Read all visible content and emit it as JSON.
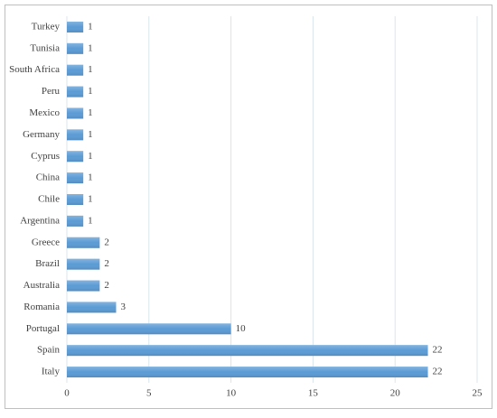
{
  "chart_data": {
    "type": "hbar",
    "categories": [
      "Turkey",
      "Tunisia",
      "South Africa",
      "Peru",
      "Mexico",
      "Germany",
      "Cyprus",
      "China",
      "Chile",
      "Argentina",
      "Greece",
      "Brazil",
      "Australia",
      "Romania",
      "Portugal",
      "Spain",
      "Italy"
    ],
    "values": [
      1,
      1,
      1,
      1,
      1,
      1,
      1,
      1,
      1,
      1,
      2,
      2,
      2,
      3,
      10,
      22,
      22
    ],
    "color": "#5b9bd5",
    "xlim": [
      0,
      25
    ],
    "xticks": [
      0,
      5,
      10,
      15,
      20,
      25
    ],
    "grid": true
  }
}
